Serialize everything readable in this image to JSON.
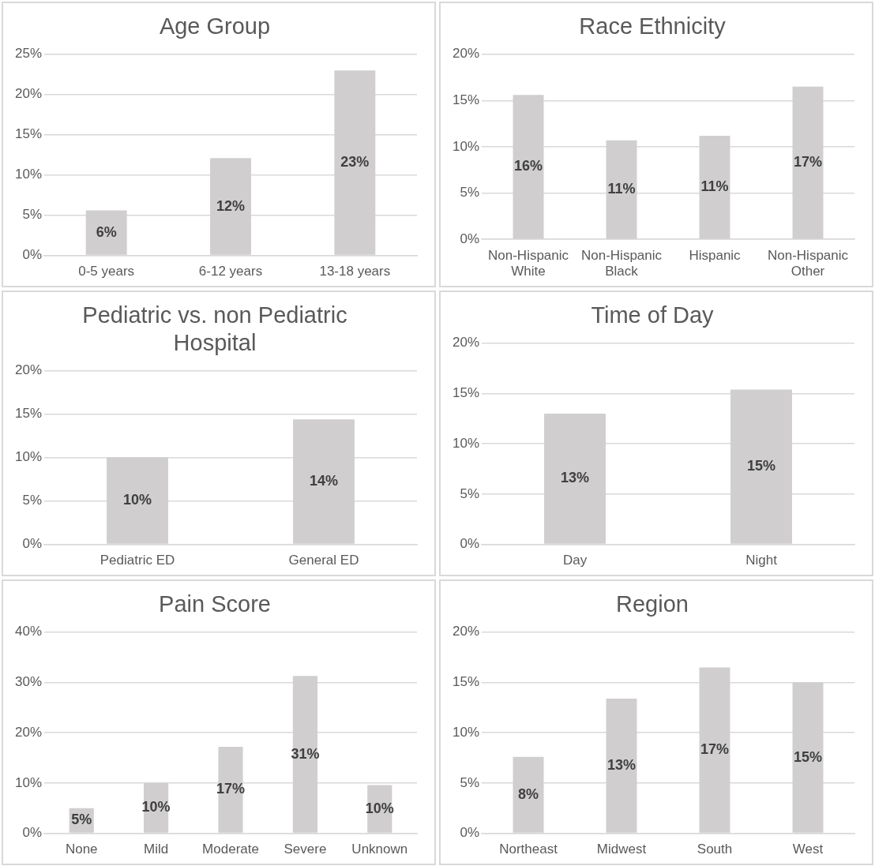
{
  "chart_data": [
    {
      "type": "bar",
      "title": "Age Group",
      "categories": [
        "0-5 years",
        "6-12 years",
        "13-18 years"
      ],
      "values": [
        5.6,
        12.1,
        23.0
      ],
      "value_labels": [
        "6%",
        "12%",
        "23%"
      ],
      "color": "#d0cece",
      "ylim": [
        0,
        25
      ],
      "yticks": [
        {
          "value": 0,
          "label": "0%"
        },
        {
          "value": 5,
          "label": "5%"
        },
        {
          "value": 10,
          "label": "10%"
        },
        {
          "value": 15,
          "label": "15%"
        },
        {
          "value": 20,
          "label": "20%"
        },
        {
          "value": 25,
          "label": "25%"
        }
      ],
      "grid": "y"
    },
    {
      "type": "bar",
      "title": "Race Ethnicity",
      "categories": [
        "Non-Hispanic White",
        "Non-Hispanic Black",
        "Hispanic",
        "Non-Hispanic Other"
      ],
      "values": [
        15.6,
        10.7,
        11.2,
        16.5
      ],
      "value_labels": [
        "16%",
        "11%",
        "11%",
        "17%"
      ],
      "color": "#d0cece",
      "ylim": [
        0,
        20
      ],
      "yticks": [
        {
          "value": 0,
          "label": "0%"
        },
        {
          "value": 5,
          "label": "5%"
        },
        {
          "value": 10,
          "label": "10%"
        },
        {
          "value": 15,
          "label": "15%"
        },
        {
          "value": 20,
          "label": "20%"
        }
      ],
      "grid": "y"
    },
    {
      "type": "bar",
      "title": "Pediatric vs. non Pediatric Hospital",
      "categories": [
        "Pediatric ED",
        "General ED"
      ],
      "values": [
        10.0,
        14.4
      ],
      "value_labels": [
        "10%",
        "14%"
      ],
      "color": "#d0cece",
      "ylim": [
        0,
        20
      ],
      "yticks": [
        {
          "value": 0,
          "label": "0%"
        },
        {
          "value": 5,
          "label": "5%"
        },
        {
          "value": 10,
          "label": "10%"
        },
        {
          "value": 15,
          "label": "15%"
        },
        {
          "value": 20,
          "label": "20%"
        }
      ],
      "grid": "y"
    },
    {
      "type": "bar",
      "title": "Time of Day",
      "categories": [
        "Day",
        "Night"
      ],
      "values": [
        13.0,
        15.4
      ],
      "value_labels": [
        "13%",
        "15%"
      ],
      "color": "#d0cece",
      "ylim": [
        0,
        20
      ],
      "yticks": [
        {
          "value": 0,
          "label": "0%"
        },
        {
          "value": 5,
          "label": "5%"
        },
        {
          "value": 10,
          "label": "10%"
        },
        {
          "value": 15,
          "label": "15%"
        },
        {
          "value": 20,
          "label": "20%"
        }
      ],
      "grid": "y"
    },
    {
      "type": "bar",
      "title": "Pain Score",
      "categories": [
        "None",
        "Mild",
        "Moderate",
        "Severe",
        "Unknown"
      ],
      "values": [
        5.0,
        10.0,
        17.2,
        31.3,
        9.6
      ],
      "value_labels": [
        "5%",
        "10%",
        "17%",
        "31%",
        "10%"
      ],
      "color": "#d0cece",
      "ylim": [
        0,
        40
      ],
      "yticks": [
        {
          "value": 0,
          "label": "0%"
        },
        {
          "value": 10,
          "label": "10%"
        },
        {
          "value": 20,
          "label": "20%"
        },
        {
          "value": 30,
          "label": "30%"
        },
        {
          "value": 40,
          "label": "40%"
        }
      ],
      "grid": "y"
    },
    {
      "type": "bar",
      "title": "Region",
      "categories": [
        "Northeast",
        "Midwest",
        "South",
        "West"
      ],
      "values": [
        7.6,
        13.4,
        16.5,
        15.0
      ],
      "value_labels": [
        "8%",
        "13%",
        "17%",
        "15%"
      ],
      "color": "#d0cece",
      "ylim": [
        0,
        20
      ],
      "yticks": [
        {
          "value": 0,
          "label": "0%"
        },
        {
          "value": 5,
          "label": "5%"
        },
        {
          "value": 10,
          "label": "10%"
        },
        {
          "value": 15,
          "label": "15%"
        },
        {
          "value": 20,
          "label": "20%"
        }
      ],
      "grid": "y"
    }
  ]
}
